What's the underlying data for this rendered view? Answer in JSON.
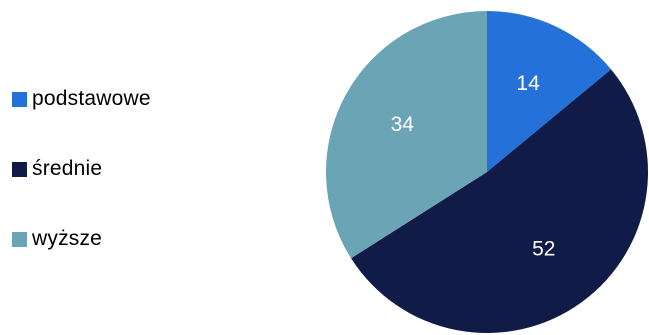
{
  "chart_data": {
    "type": "pie",
    "title": "",
    "legend_position": "left",
    "categories": [
      "podstawowe",
      "średnie",
      "wyższe"
    ],
    "values": [
      14,
      52,
      34
    ],
    "colors": [
      "#2472d9",
      "#111b47",
      "#6ba5b5"
    ],
    "data_labels": [
      "14",
      "52",
      "34"
    ]
  }
}
